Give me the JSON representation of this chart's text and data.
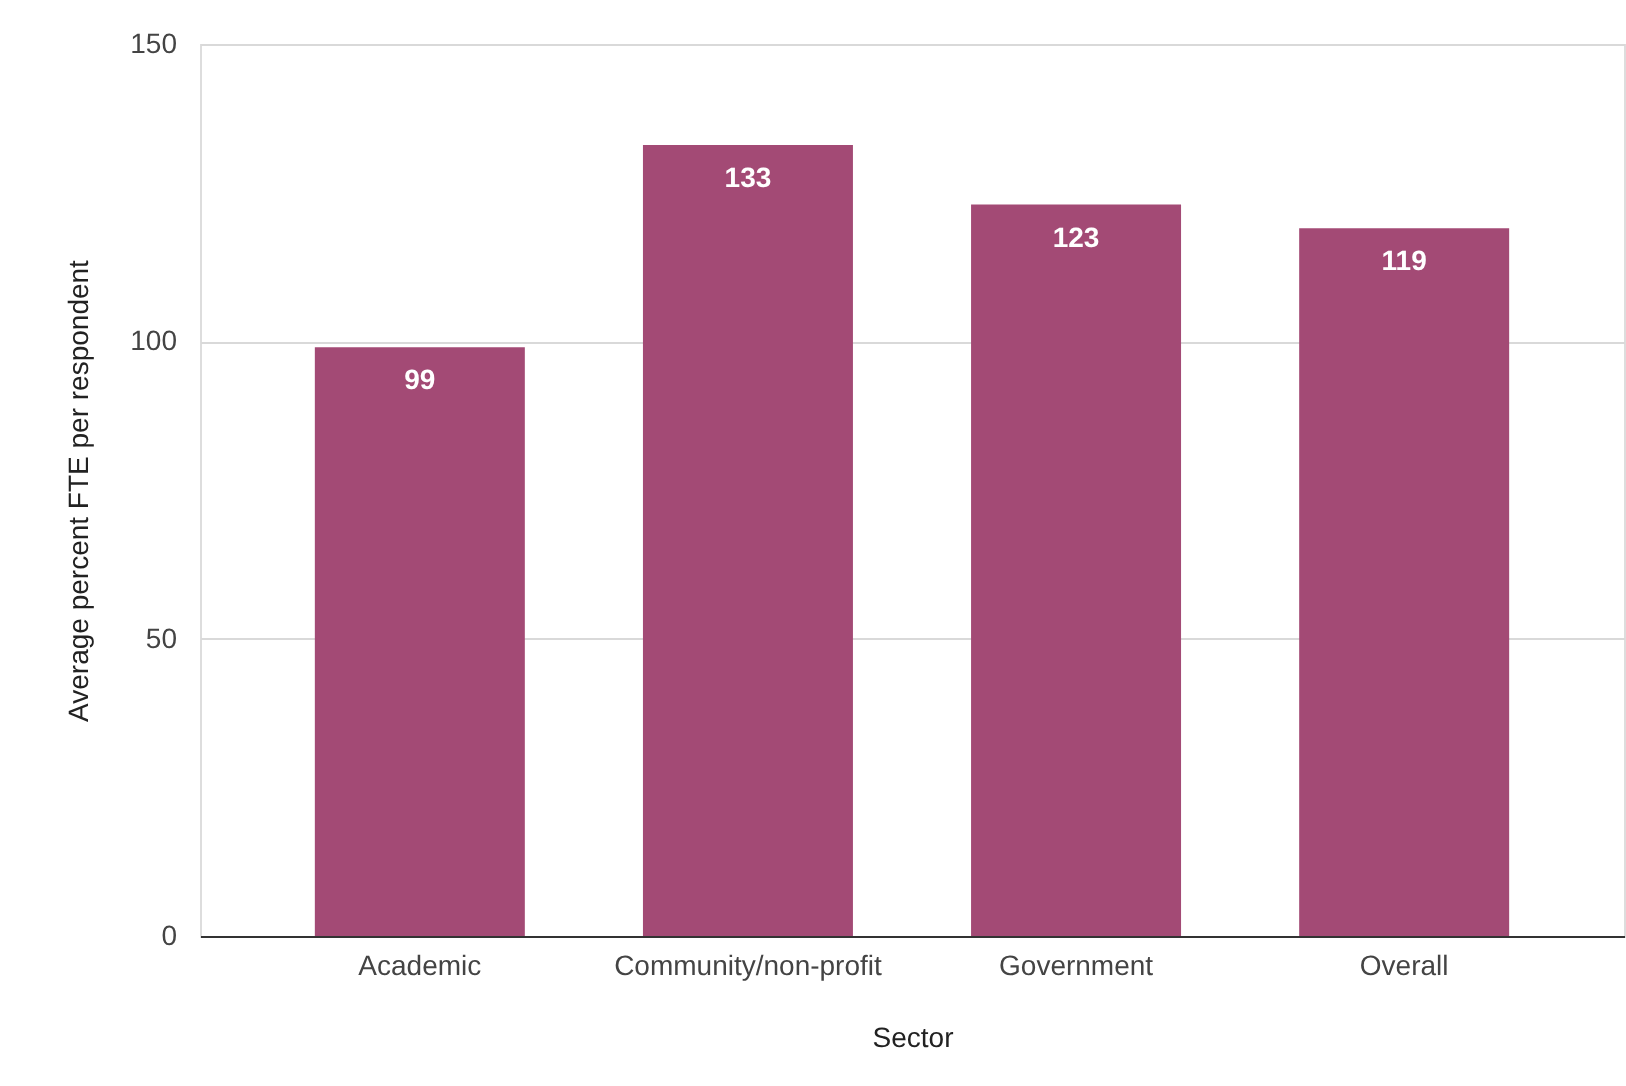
{
  "chart_data": {
    "type": "bar",
    "xlabel": "Sector",
    "ylabel": "Average percent FTE per respondent",
    "categories": [
      "Academic",
      "Community/non-profit",
      "Government",
      "Overall"
    ],
    "values": [
      99,
      133,
      123,
      119
    ],
    "color": "#a34a75",
    "ylim": [
      0,
      150
    ],
    "yticks": [
      0,
      50,
      100,
      150
    ],
    "grid": "y",
    "data_labels": true
  }
}
